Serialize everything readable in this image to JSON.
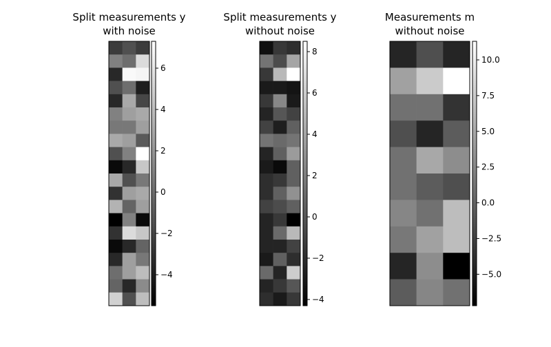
{
  "chart_data": [
    {
      "type": "heatmap",
      "title": [
        "Split measurements y",
        "with noise"
      ],
      "colormap": "gray",
      "clim": [
        -5.5,
        7.3
      ],
      "cticks": [
        {
          "value": -4,
          "label": "−4"
        },
        {
          "value": -2,
          "label": "−2"
        },
        0,
        2,
        4,
        6
      ],
      "values": [
        [
          -2.5,
          -1.5,
          -2.5
        ],
        [
          1.0,
          0.0,
          5.5
        ],
        [
          -3.5,
          7.0,
          6.8
        ],
        [
          -1.5,
          0.0,
          -4.0
        ],
        [
          -3.5,
          3.0,
          -2.0
        ],
        [
          1.0,
          2.5,
          3.0
        ],
        [
          0.5,
          0.5,
          2.5
        ],
        [
          3.0,
          2.5,
          -1.0
        ],
        [
          -1.5,
          1.0,
          7.3
        ],
        [
          -5.0,
          -3.5,
          4.5
        ],
        [
          3.0,
          -1.5,
          0.5
        ],
        [
          -3.0,
          2.5,
          3.0
        ],
        [
          3.5,
          -0.5,
          2.5
        ],
        [
          -5.5,
          1.0,
          -5.0
        ],
        [
          -3.0,
          5.5,
          4.5
        ],
        [
          -5.0,
          -3.5,
          -0.5
        ],
        [
          -3.5,
          2.5,
          0.5
        ],
        [
          0.0,
          2.5,
          4.0
        ],
        [
          -0.5,
          -3.5,
          1.5
        ],
        [
          5.0,
          -1.5,
          4.0
        ]
      ]
    },
    {
      "type": "heatmap",
      "title": [
        "Split measurements y",
        "without noise"
      ],
      "colormap": "gray",
      "clim": [
        -4.3,
        8.5
      ],
      "cticks": [
        {
          "value": -4,
          "label": "−4"
        },
        {
          "value": -2,
          "label": "−2"
        },
        0,
        2,
        4,
        6,
        8
      ],
      "values": [
        [
          -3.5,
          -1.5,
          -2.0
        ],
        [
          1.5,
          -0.5,
          4.0
        ],
        [
          -1.5,
          5.0,
          8.5
        ],
        [
          -3.0,
          -3.0,
          -3.3
        ],
        [
          -1.5,
          2.5,
          -3.0
        ],
        [
          -2.5,
          0.0,
          -1.0
        ],
        [
          -1.0,
          -2.8,
          0.5
        ],
        [
          1.5,
          1.0,
          1.5
        ],
        [
          -2.5,
          0.5,
          3.5
        ],
        [
          -3.0,
          -3.8,
          0.5
        ],
        [
          -2.0,
          -1.5,
          0.5
        ],
        [
          -2.0,
          0.5,
          3.0
        ],
        [
          -1.0,
          -0.5,
          0.5
        ],
        [
          -2.5,
          -1.5,
          -4.3
        ],
        [
          -2.5,
          1.0,
          5.0
        ],
        [
          -2.5,
          -2.5,
          -1.0
        ],
        [
          -3.0,
          0.5,
          -2.0
        ],
        [
          1.0,
          -2.5,
          6.0
        ],
        [
          -2.5,
          -1.5,
          0.0
        ],
        [
          -2.0,
          -3.0,
          -1.5
        ]
      ]
    },
    {
      "type": "heatmap",
      "title": [
        "Measurements m",
        "without noise"
      ],
      "colormap": "gray",
      "clim": [
        -7.2,
        11.3
      ],
      "cticks": [
        {
          "value": -5,
          "label": "−5.0"
        },
        {
          "value": -2.5,
          "label": "−2.5"
        },
        {
          "value": 0,
          "label": "0.0"
        },
        2.5,
        {
          "value": 5,
          "label": "5.0"
        },
        7.5,
        {
          "value": 10,
          "label": "10.0"
        }
      ],
      "values": [
        [
          -4.5,
          -1.5,
          -4.5
        ],
        [
          4.5,
          7.5,
          11.3
        ],
        [
          1.0,
          1.0,
          -3.5
        ],
        [
          -1.5,
          -4.5,
          -0.5
        ],
        [
          1.0,
          5.0,
          3.0
        ],
        [
          1.0,
          -0.5,
          -1.5
        ],
        [
          2.5,
          1.0,
          6.5
        ],
        [
          1.5,
          4.5,
          6.5
        ],
        [
          -4.5,
          3.0,
          -7.2
        ],
        [
          -0.5,
          2.5,
          1.0
        ]
      ]
    }
  ]
}
